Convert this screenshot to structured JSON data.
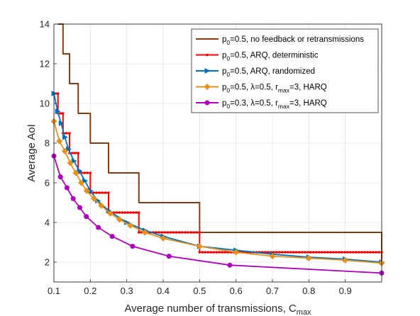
{
  "chart_data": {
    "type": "line",
    "title": "",
    "xlabel": "Average number  of transmissions, C",
    "xlabel_sub": "max",
    "ylabel": "Average AoI",
    "xlim": [
      0.1,
      1.0
    ],
    "ylim": [
      1.0,
      14.0
    ],
    "xticks": [
      0.1,
      0.2,
      0.3,
      0.4,
      0.5,
      0.6,
      0.7,
      0.8,
      0.9
    ],
    "xtick_labels": [
      "0.1",
      "0.2",
      "0.3",
      "0.4",
      "0.5",
      "0.6",
      "0.7",
      "0.8",
      "0.9"
    ],
    "yticks": [
      2,
      4,
      6,
      8,
      10,
      12,
      14
    ],
    "ytick_labels": [
      "2",
      "4",
      "6",
      "8",
      "10",
      "12",
      "14"
    ],
    "grid": true,
    "legend_position": "top-right",
    "series": [
      {
        "name": "no feedback or retransmissions",
        "legend": [
          {
            "t": "p",
            "s": ""
          },
          {
            "t": "0",
            "s": "sub"
          },
          {
            "t": "=0.5, no feedback or retransmissions",
            "s": ""
          }
        ],
        "color": "#8b3a0e",
        "marker": "none",
        "style": "step",
        "x": [
          0.1111,
          0.125,
          0.1429,
          0.1667,
          0.2,
          0.25,
          0.3333,
          0.5,
          1.0
        ],
        "y": [
          14,
          12.5,
          11,
          9.5,
          8,
          6.5,
          5,
          3.5,
          2.0
        ]
      },
      {
        "name": "ARQ, deterministic",
        "legend": [
          {
            "t": "p",
            "s": ""
          },
          {
            "t": "0",
            "s": "sub"
          },
          {
            "t": "=0.5, ARQ, deterministic",
            "s": ""
          }
        ],
        "color": "#ff0000",
        "marker": "dot",
        "style": "step",
        "x": [
          0.1,
          0.1111,
          0.125,
          0.1429,
          0.1667,
          0.2,
          0.25,
          0.3333,
          0.5,
          1.0
        ],
        "y": [
          10.5,
          9.5,
          8.5,
          7.5,
          6.5,
          5.5,
          4.5,
          3.5,
          2.5,
          2.0
        ]
      },
      {
        "name": "ARQ, randomized",
        "legend": [
          {
            "t": "p",
            "s": ""
          },
          {
            "t": "0",
            "s": "sub"
          },
          {
            "t": "=0.5, ARQ, randomized",
            "s": ""
          }
        ],
        "color": "#0072bd",
        "marker": "triangle-right",
        "style": "line",
        "x": [
          0.1,
          0.11,
          0.12,
          0.13,
          0.14,
          0.155,
          0.17,
          0.185,
          0.2,
          0.22,
          0.25,
          0.3,
          0.35,
          0.4,
          0.5,
          0.6,
          0.7,
          0.8,
          0.9,
          1.0
        ],
        "y": [
          10.5,
          9.6,
          9.0,
          8.3,
          7.7,
          7.1,
          6.6,
          6.1,
          5.6,
          5.1,
          4.6,
          4.0,
          3.6,
          3.3,
          2.8,
          2.6,
          2.4,
          2.25,
          2.15,
          2.0
        ]
      },
      {
        "name": "HARQ",
        "legend": [
          {
            "t": "p",
            "s": ""
          },
          {
            "t": "0",
            "s": "sub"
          },
          {
            "t": "=0.5, ",
            "s": ""
          },
          {
            "t": "λ",
            "s": ""
          },
          {
            "t": "=0.5, r",
            "s": ""
          },
          {
            "t": "max",
            "s": "sub"
          },
          {
            "t": "=3, HARQ",
            "s": ""
          }
        ],
        "color": "#e69119",
        "marker": "diamond",
        "style": "line",
        "x": [
          0.1,
          0.115,
          0.13,
          0.145,
          0.16,
          0.175,
          0.19,
          0.21,
          0.23,
          0.255,
          0.28,
          0.31,
          0.35,
          0.4,
          0.5,
          0.6,
          0.7,
          0.8,
          0.9,
          1.0
        ],
        "y": [
          9.1,
          8.1,
          7.6,
          7.0,
          6.5,
          6.0,
          5.6,
          5.2,
          4.85,
          4.45,
          4.15,
          3.85,
          3.5,
          3.2,
          2.8,
          2.5,
          2.3,
          2.2,
          2.1,
          1.95
        ]
      },
      {
        "name": "HARQ p0=0.3",
        "legend": [
          {
            "t": "p",
            "s": ""
          },
          {
            "t": "0",
            "s": "sub"
          },
          {
            "t": "=0.3, ",
            "s": ""
          },
          {
            "t": "λ",
            "s": ""
          },
          {
            "t": "=0.5, r",
            "s": ""
          },
          {
            "t": "max",
            "s": "sub"
          },
          {
            "t": "=3, HARQ",
            "s": ""
          }
        ],
        "color": "#b000c0",
        "marker": "circle",
        "style": "line",
        "x": [
          0.1,
          0.118,
          0.136,
          0.153,
          0.171,
          0.189,
          0.222,
          0.26,
          0.316,
          0.416,
          0.583,
          1.0
        ],
        "y": [
          7.35,
          6.3,
          5.75,
          5.2,
          4.75,
          4.3,
          3.75,
          3.3,
          2.8,
          2.3,
          1.85,
          1.45
        ]
      }
    ]
  }
}
